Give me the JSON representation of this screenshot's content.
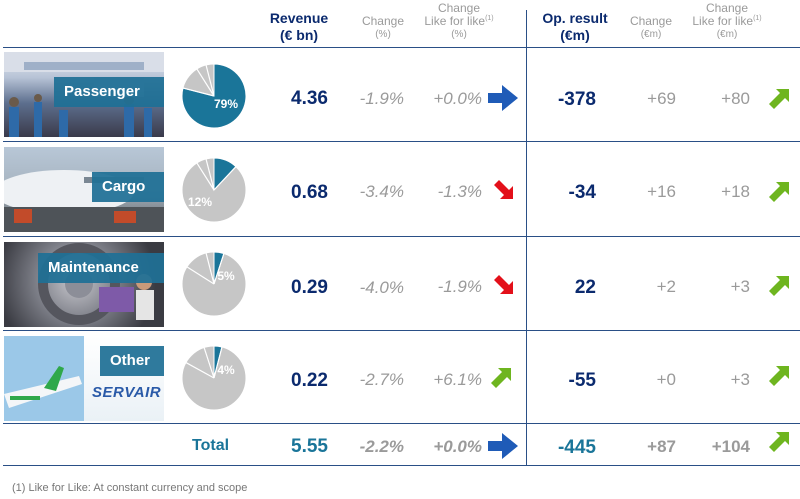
{
  "headers": {
    "revenue": "Revenue",
    "revenue_unit": "(€ bn)",
    "change": "Change",
    "change_unit": "(%)",
    "lfl_line1": "Change",
    "lfl_line2": "Like for like",
    "lfl_sup": "(1)",
    "lfl_unit": "(%)",
    "op_result": "Op. result",
    "op_result_unit": "(€m)",
    "op_change": "Change",
    "op_change_unit": "(€m)",
    "op_lfl_line1": "Change",
    "op_lfl_line2": "Like for like",
    "op_lfl_sup": "(1)",
    "op_lfl_unit": "(€m)"
  },
  "rows": [
    {
      "label": "Passenger",
      "share": "79%",
      "share_value": 0.79,
      "revenue": "4.36",
      "change": "-1.9%",
      "lfl": "+0.0%",
      "lfl_arrow": "right-blue",
      "op_result": "-378",
      "op_change": "+69",
      "op_lfl": "+80",
      "op_arrow": "up-green"
    },
    {
      "label": "Cargo",
      "share": "12%",
      "share_value": 0.12,
      "revenue": "0.68",
      "change": "-3.4%",
      "lfl": "-1.3%",
      "lfl_arrow": "down-red",
      "op_result": "-34",
      "op_change": "+16",
      "op_lfl": "+18",
      "op_arrow": "up-green"
    },
    {
      "label": "Maintenance",
      "share": "5%",
      "share_value": 0.05,
      "revenue": "0.29",
      "change": "-4.0%",
      "lfl": "-1.9%",
      "lfl_arrow": "down-red",
      "op_result": "22",
      "op_change": "+2",
      "op_lfl": "+3",
      "op_arrow": "up-green"
    },
    {
      "label": "Other",
      "share": "4%",
      "share_value": 0.04,
      "revenue": "0.22",
      "change": "-2.7%",
      "lfl": "+6.1%",
      "lfl_arrow": "up-green",
      "op_result": "-55",
      "op_change": "+0",
      "op_lfl": "+3",
      "op_arrow": "up-green"
    }
  ],
  "total": {
    "label": "Total",
    "revenue": "5.55",
    "change": "-2.2%",
    "lfl": "+0.0%",
    "lfl_arrow": "right-blue",
    "op_result": "-445",
    "op_change": "+87",
    "op_lfl": "+104",
    "op_arrow": "up-green"
  },
  "other_logo": "SERVAIR",
  "footnote": "(1) Like for Like: At constant currency and scope",
  "colors": {
    "navy": "#0b2a6e",
    "teal": "#1a7599",
    "green": "#6eb51f",
    "red": "#e3101a",
    "blue_arrow": "#1f5bb7",
    "pie_gray": "#c6c6c6",
    "grid": "#2a4f86"
  }
}
